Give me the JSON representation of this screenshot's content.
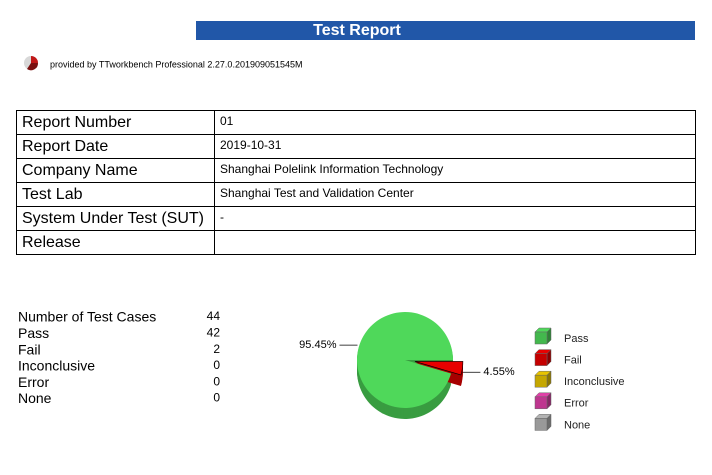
{
  "header": {
    "title": "Test Report",
    "provider": "provided by TTworkbench Professional 2.27.0.201909051545M"
  },
  "info_table": {
    "rows": [
      [
        "Report Number",
        "01"
      ],
      [
        "Report Date",
        "2019-10-31"
      ],
      [
        "Company Name",
        "Shanghai Polelink Information Technology"
      ],
      [
        "Test Lab",
        "Shanghai Test and Validation Center"
      ],
      [
        "System Under Test (SUT)",
        "-"
      ],
      [
        "Release"
      ]
    ]
  },
  "summary": {
    "rows": [
      {
        "label": "Number of Test Cases",
        "value": 44
      },
      {
        "label": "Pass",
        "value": 42
      },
      {
        "label": "Fail",
        "value": 2
      },
      {
        "label": "Inconclusive",
        "value": 0
      },
      {
        "label": "Error",
        "value": 0
      },
      {
        "label": "None",
        "value": 0
      }
    ]
  },
  "chart_data": {
    "type": "pie",
    "categories": [
      "Pass",
      "Fail",
      "Inconclusive",
      "Error",
      "None"
    ],
    "values": [
      95.45,
      4.55,
      0,
      0,
      0
    ],
    "value_labels": [
      "95.45%",
      "4.55%",
      null,
      null,
      null
    ],
    "colors": [
      "#4fd85a",
      "#e80000",
      "#e8c400",
      "#e040a8",
      "#b4b4b4"
    ],
    "exploded": [
      false,
      true,
      false,
      false,
      false
    ]
  }
}
